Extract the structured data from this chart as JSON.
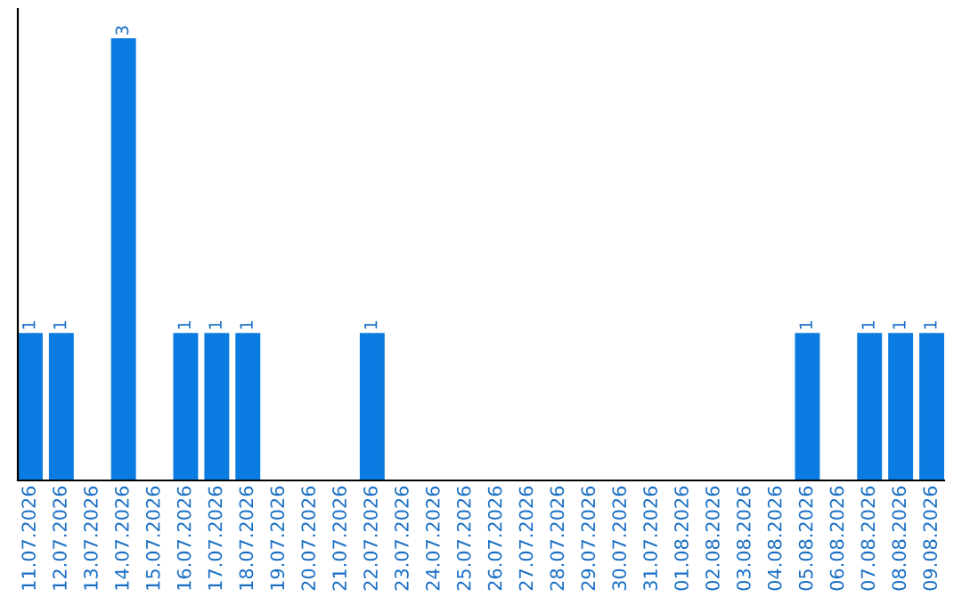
{
  "chart_data": {
    "type": "bar",
    "categories": [
      "11.07.2026",
      "12.07.2026",
      "13.07.2026",
      "14.07.2026",
      "15.07.2026",
      "16.07.2026",
      "17.07.2026",
      "18.07.2026",
      "19.07.2026",
      "20.07.2026",
      "21.07.2026",
      "22.07.2026",
      "23.07.2026",
      "24.07.2026",
      "25.07.2026",
      "26.07.2026",
      "27.07.2026",
      "28.07.2026",
      "29.07.2026",
      "30.07.2026",
      "31.07.2026",
      "01.08.2026",
      "02.08.2026",
      "03.08.2026",
      "04.08.2026",
      "05.08.2026",
      "06.08.2026",
      "07.08.2026",
      "08.08.2026",
      "09.08.2026"
    ],
    "values": [
      1,
      1,
      0,
      3,
      0,
      1,
      1,
      1,
      0,
      0,
      0,
      1,
      0,
      0,
      0,
      0,
      0,
      0,
      0,
      0,
      0,
      0,
      0,
      0,
      0,
      1,
      0,
      1,
      1,
      1
    ],
    "value_labels": [
      "1",
      "1",
      null,
      "3",
      null,
      "1",
      "1",
      "1",
      null,
      null,
      null,
      "1",
      null,
      null,
      null,
      null,
      null,
      null,
      null,
      null,
      null,
      null,
      null,
      null,
      null,
      "1",
      null,
      "1",
      "1",
      "1"
    ],
    "color": "#0a7be0",
    "ylim": [
      0,
      3.2
    ],
    "tick_labels": "x",
    "grid": false,
    "legend": false
  }
}
